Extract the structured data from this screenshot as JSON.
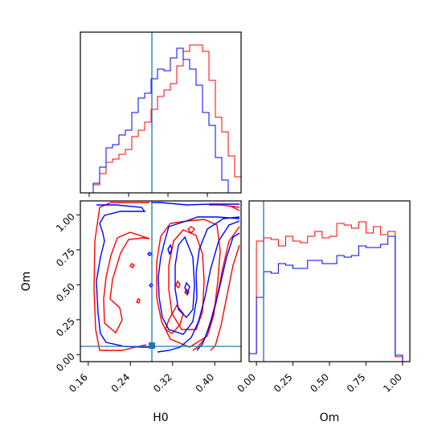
{
  "chart_data": {
    "type": "corner",
    "parameters": [
      "H0",
      "Om"
    ],
    "truth": {
      "H0": 0.28,
      "Om": 0.06
    },
    "colors": {
      "truth": "#1f77b4",
      "series_a": "#ff0000",
      "series_b": "#0000ff"
    },
    "grid": false,
    "panels": {
      "h0_hist": {
        "type": "histogram",
        "xlim": [
          0.145,
          0.45
        ],
        "bin_edges": [
          0.145,
          0.1572,
          0.1694,
          0.1816,
          0.1938,
          0.206,
          0.2182,
          0.2304,
          0.2426,
          0.2548,
          0.267,
          0.2792,
          0.2914,
          0.3036,
          0.3158,
          0.328,
          0.3402,
          0.3524,
          0.3646,
          0.3768,
          0.389,
          0.4012,
          0.4134,
          0.4256,
          0.4378,
          0.45
        ],
        "series": [
          {
            "color": "#ff0000",
            "counts": [
              0,
              0,
              0.05,
              0.12,
              0.19,
              0.21,
              0.24,
              0.27,
              0.35,
              0.39,
              0.44,
              0.52,
              0.6,
              0.64,
              0.68,
              0.79,
              0.88,
              0.92,
              0.92,
              0.88,
              0.7,
              0.47,
              0.38,
              0.23,
              0.1
            ]
          },
          {
            "color": "#0000ff",
            "counts": [
              0,
              0,
              0.06,
              0.16,
              0.28,
              0.3,
              0.36,
              0.39,
              0.5,
              0.59,
              0.62,
              0.71,
              0.77,
              0.76,
              0.84,
              0.9,
              0.83,
              0.77,
              0.67,
              0.5,
              0.42,
              0.22,
              0.08,
              0.0,
              0.0
            ]
          }
        ]
      },
      "om_hist": {
        "type": "histogram",
        "xlim": [
          -0.05,
          1.05
        ],
        "bin_edges": [
          -0.05,
          0.0,
          0.05,
          0.1,
          0.15,
          0.2,
          0.25,
          0.3,
          0.35,
          0.4,
          0.45,
          0.5,
          0.55,
          0.6,
          0.65,
          0.7,
          0.75,
          0.8,
          0.85,
          0.9,
          0.95,
          1.0,
          1.05
        ],
        "series": [
          {
            "color": "#ff0000",
            "counts": [
              0.05,
              0.75,
              0.77,
              0.76,
              0.72,
              0.78,
              0.75,
              0.74,
              0.78,
              0.81,
              0.77,
              0.78,
              0.86,
              0.85,
              0.83,
              0.87,
              0.8,
              0.84,
              0.79,
              0.81,
              0.03,
              0.0
            ]
          },
          {
            "color": "#0000ff",
            "counts": [
              0.05,
              0.4,
              0.56,
              0.55,
              0.61,
              0.6,
              0.58,
              0.58,
              0.63,
              0.63,
              0.61,
              0.61,
              0.66,
              0.65,
              0.66,
              0.72,
              0.71,
              0.71,
              0.73,
              0.78,
              0.04,
              0.0
            ]
          }
        ]
      },
      "joint": {
        "type": "contour",
        "xlabel": "H0",
        "ylabel": "Om",
        "xlim": [
          0.145,
          0.45
        ],
        "ylim": [
          -0.05,
          1.1
        ],
        "x_ticks": [
          "0.16",
          "0.24",
          "0.32",
          "0.40"
        ],
        "y_ticks": [
          "0.00",
          "0.25",
          "0.50",
          "0.75",
          "1.00"
        ],
        "series": [
          {
            "color": "#ff0000",
            "levels": 3
          },
          {
            "color": "#0000ff",
            "levels": 3
          }
        ]
      },
      "om_x_axis": {
        "xlabel": "Om",
        "x_ticks": [
          "0.00",
          "0.25",
          "0.50",
          "0.75",
          "1.00"
        ]
      }
    }
  }
}
